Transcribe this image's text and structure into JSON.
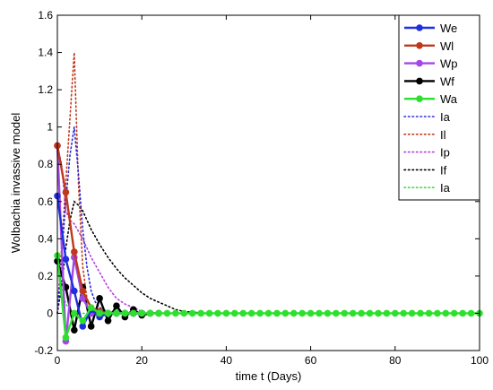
{
  "chart_data": {
    "type": "line",
    "title": "",
    "xlabel": "time t (Days)",
    "ylabel": "Wolbachia invassive model",
    "xlim": [
      0,
      100
    ],
    "ylim": [
      -0.2,
      1.6
    ],
    "xticks": [
      "0",
      "20",
      "40",
      "60",
      "80",
      "100"
    ],
    "yticks": [
      "-0.2",
      "0",
      "0.2",
      "0.4",
      "0.6",
      "0.8",
      "1",
      "1.2",
      "1.4",
      "1.6"
    ],
    "grid": false,
    "legend_position": "top-right",
    "series": [
      {
        "name": "We",
        "style": "solid-marker",
        "color": "#1f2fe0",
        "x": [
          0,
          2,
          4,
          6,
          8,
          10,
          12,
          14,
          16,
          18,
          20
        ],
        "y": [
          0.63,
          0.29,
          0.12,
          -0.07,
          0.02,
          -0.02,
          0.0,
          0.0,
          0.0,
          0.0,
          0.0
        ]
      },
      {
        "name": "Wl",
        "style": "solid-marker",
        "color": "#c0381c",
        "x": [
          0,
          2,
          4,
          6,
          8,
          10,
          12,
          14,
          16,
          18,
          20
        ],
        "y": [
          0.9,
          0.65,
          0.33,
          0.12,
          0.03,
          0.01,
          0.0,
          0.0,
          0.0,
          0.0,
          0.0
        ]
      },
      {
        "name": "Wp",
        "style": "solid-marker",
        "color": "#a347e6",
        "x": [
          0,
          2,
          4,
          6,
          8,
          10,
          12,
          14,
          16,
          18,
          20
        ],
        "y": [
          0.9,
          -0.15,
          0.3,
          0.08,
          0.0,
          0.0,
          0.0,
          0.0,
          0.0,
          0.0,
          0.0
        ]
      },
      {
        "name": "Wf",
        "style": "solid-marker",
        "color": "#000000",
        "x": [
          0,
          2,
          4,
          6,
          8,
          10,
          12,
          14,
          16,
          18,
          20,
          22,
          24
        ],
        "y": [
          0.28,
          0.14,
          -0.09,
          0.14,
          -0.07,
          0.08,
          -0.04,
          0.04,
          -0.02,
          0.02,
          -0.01,
          0.0,
          0.0
        ]
      },
      {
        "name": "Wa",
        "style": "solid-marker",
        "color": "#2ee02e",
        "x": [
          0,
          2,
          4,
          6,
          8,
          10,
          12,
          14,
          16,
          18,
          20,
          22,
          24,
          26,
          28,
          30,
          32,
          34,
          36,
          38,
          40,
          42,
          44,
          46,
          48,
          50,
          52,
          54,
          56,
          58,
          60,
          62,
          64,
          66,
          68,
          70,
          72,
          74,
          76,
          78,
          80,
          82,
          84,
          86,
          88,
          90,
          92,
          94,
          96,
          98,
          100
        ],
        "y": [
          0.31,
          -0.13,
          0.0,
          -0.04,
          0.03,
          0.0,
          0.0,
          0.0,
          0.0,
          0.0,
          0.0,
          0.0,
          0.0,
          0.0,
          0.0,
          0.0,
          0.0,
          0.0,
          0.0,
          0.0,
          0.0,
          0.0,
          0.0,
          0.0,
          0.0,
          0.0,
          0.0,
          0.0,
          0.0,
          0.0,
          0.0,
          0.0,
          0.0,
          0.0,
          0.0,
          0.0,
          0.0,
          0.0,
          0.0,
          0.0,
          0.0,
          0.0,
          0.0,
          0.0,
          0.0,
          0.0,
          0.0,
          0.0,
          0.0,
          0.0,
          0.0
        ]
      },
      {
        "name": "Ia",
        "style": "dotted",
        "color": "#2a2ad8",
        "x": [
          0,
          1,
          2,
          3,
          4,
          5,
          6,
          7,
          8,
          9,
          10,
          12,
          14,
          16,
          20
        ],
        "y": [
          0.0,
          0.3,
          0.6,
          0.85,
          1.0,
          0.75,
          0.45,
          0.25,
          0.12,
          0.06,
          0.03,
          0.01,
          0.0,
          0.0,
          0.0
        ]
      },
      {
        "name": "Il",
        "style": "dotted",
        "color": "#c03a1a",
        "x": [
          0,
          1,
          2,
          3,
          4,
          5,
          6,
          7,
          8,
          9,
          10,
          12,
          14
        ],
        "y": [
          0.0,
          0.35,
          0.7,
          1.05,
          1.4,
          0.7,
          0.25,
          0.08,
          0.02,
          0.0,
          0.0,
          0.0,
          0.0
        ]
      },
      {
        "name": "Ip",
        "style": "dotted",
        "color": "#b63ee0",
        "x": [
          0,
          1,
          2,
          3,
          4,
          5,
          6,
          7,
          8,
          9,
          10,
          11,
          12,
          13,
          14,
          16,
          18,
          20,
          22
        ],
        "y": [
          0.9,
          0.8,
          0.55,
          0.5,
          0.48,
          0.44,
          0.4,
          0.35,
          0.3,
          0.26,
          0.22,
          0.18,
          0.14,
          0.11,
          0.08,
          0.05,
          0.03,
          0.01,
          0.0
        ]
      },
      {
        "name": "If",
        "style": "dotted",
        "color": "#000000",
        "x": [
          0,
          1,
          2,
          3,
          4,
          5,
          6,
          8,
          10,
          12,
          14,
          16,
          18,
          20,
          22,
          24,
          26,
          28,
          30,
          35
        ],
        "y": [
          0.0,
          0.15,
          0.35,
          0.5,
          0.6,
          0.58,
          0.55,
          0.45,
          0.37,
          0.3,
          0.24,
          0.19,
          0.15,
          0.11,
          0.08,
          0.06,
          0.04,
          0.02,
          0.01,
          0.0
        ]
      },
      {
        "name": "Ia",
        "style": "dotted",
        "color": "#36e036",
        "x": [
          0,
          1,
          2,
          3,
          4,
          5,
          6,
          8,
          10,
          12
        ],
        "y": [
          0.3,
          0.15,
          0.05,
          0.02,
          0.0,
          0.0,
          0.0,
          0.0,
          0.0,
          0.0
        ]
      }
    ]
  }
}
